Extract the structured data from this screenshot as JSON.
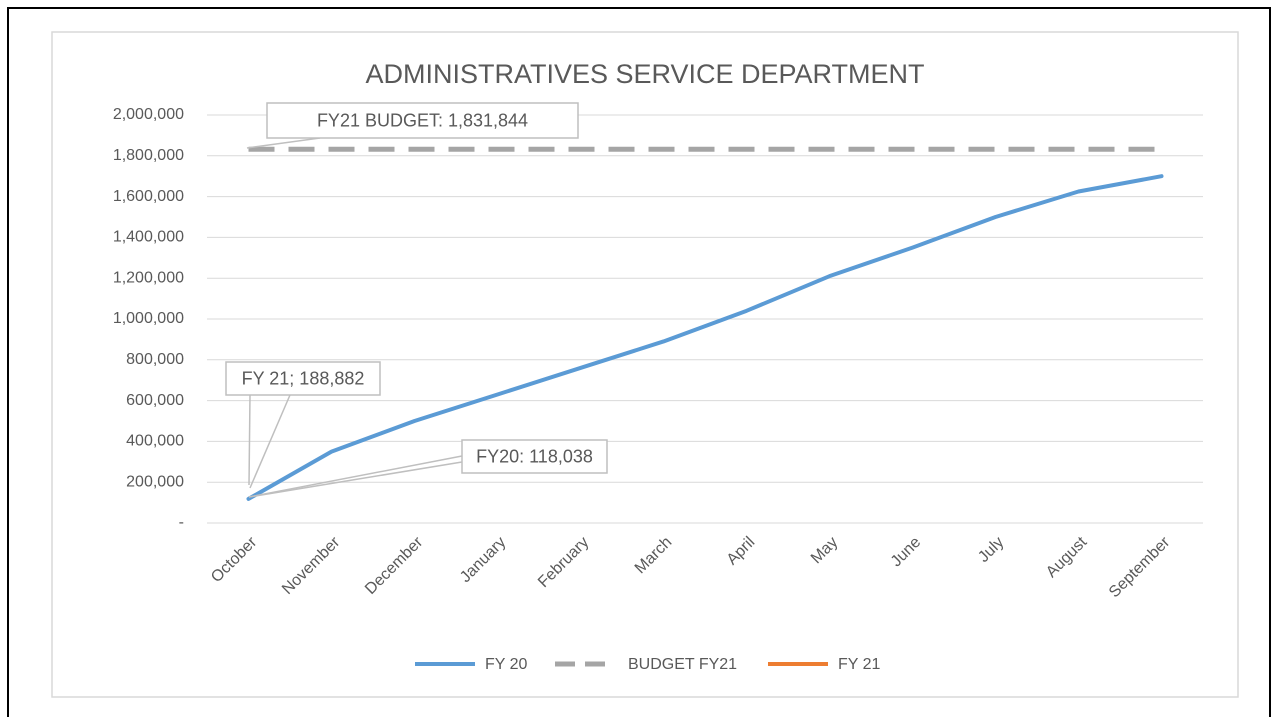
{
  "chart_data": {
    "type": "line",
    "title": "ADMINISTRATIVES SERVICE DEPARTMENT",
    "categories": [
      "October",
      "November",
      "December",
      "January",
      "February",
      "March",
      "April",
      "May",
      "June",
      "July",
      "August",
      "September"
    ],
    "series": [
      {
        "name": "FY 20",
        "color": "#5b9bd5",
        "values": [
          118038,
          350000,
          500000,
          630000,
          760000,
          890000,
          1040000,
          1210000,
          1350000,
          1500000,
          1625000,
          1700000
        ]
      },
      {
        "name": "BUDGET FY21",
        "color": "#a5a5a5",
        "dashed": true,
        "values": [
          1831844,
          1831844,
          1831844,
          1831844,
          1831844,
          1831844,
          1831844,
          1831844,
          1831844,
          1831844,
          1831844,
          1831844
        ]
      },
      {
        "name": "FY 21",
        "color": "#ed7d31",
        "values": [
          188882,
          null,
          null,
          null,
          null,
          null,
          null,
          null,
          null,
          null,
          null,
          null
        ]
      }
    ],
    "annotations": [
      "FY21 BUDGET: 1,831,844",
      "FY 21; 188,882",
      "FY20: 118,038"
    ],
    "ylim": [
      0,
      2000000
    ],
    "yticks": [
      {
        "value": 0,
        "label": "-"
      },
      {
        "value": 200000,
        "label": "200,000"
      },
      {
        "value": 400000,
        "label": "400,000"
      },
      {
        "value": 600000,
        "label": "600,000"
      },
      {
        "value": 800000,
        "label": "800,000"
      },
      {
        "value": 1000000,
        "label": "1,000,000"
      },
      {
        "value": 1200000,
        "label": "1,200,000"
      },
      {
        "value": 1400000,
        "label": "1,400,000"
      },
      {
        "value": 1600000,
        "label": "1,600,000"
      },
      {
        "value": 1800000,
        "label": "1,800,000"
      },
      {
        "value": 2000000,
        "label": "2,000,000"
      }
    ],
    "grid": true,
    "legend": "bottom"
  }
}
